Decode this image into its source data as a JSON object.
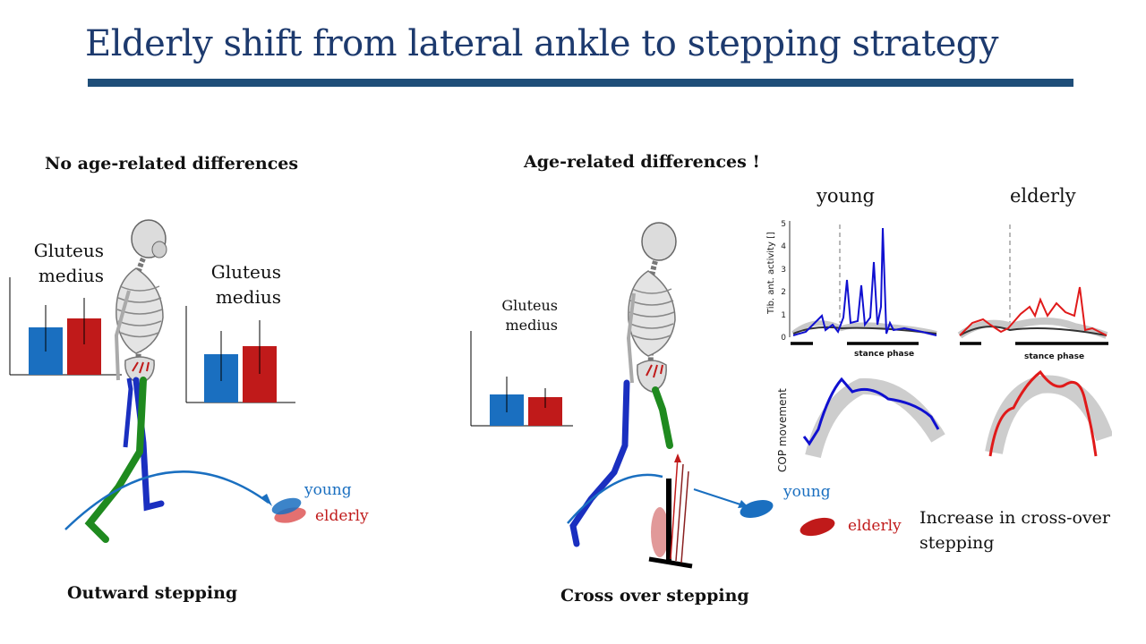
{
  "title": "Elderly shift from lateral ankle to stepping strategy",
  "left_panel": {
    "heading": "No age-related differences",
    "muscle_label_1": "Gluteus\nmedius",
    "muscle_label_2": "Gluteus\nmedius",
    "young_label": "young",
    "elderly_label": "elderly",
    "caption": "Outward stepping"
  },
  "right_panel": {
    "heading": "Age-related differences !",
    "muscle_label": "Gluteus\nmedius",
    "col_young": "young",
    "col_elderly": "elderly",
    "emg_ylabel": "Tib. ant. activity []",
    "emg_ticks": [
      "0",
      "1",
      "2",
      "3",
      "4",
      "5"
    ],
    "stance_label": "stance phase",
    "cop_label": "COP movement",
    "young_label": "young",
    "elderly_label": "elderly",
    "note": "Increase in cross-over\nstepping",
    "caption": "Cross over stepping"
  },
  "colors": {
    "young": "#1a6fc0",
    "elderly": "#c01a1a",
    "title": "#1d3a6e",
    "rule": "#1f4e79"
  }
}
